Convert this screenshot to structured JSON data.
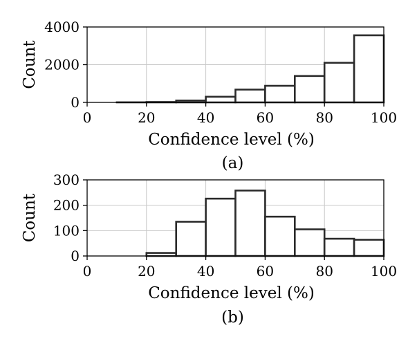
{
  "chart_data": [
    {
      "type": "bar",
      "caption": "(a)",
      "xlabel": "Confidence level (%)",
      "ylabel": "Count",
      "xlim": [
        0,
        100
      ],
      "ylim": [
        0,
        4000
      ],
      "xticks": [
        0,
        20,
        40,
        60,
        80,
        100
      ],
      "yticks": [
        0,
        2000,
        4000
      ],
      "grid": true,
      "bins": [
        [
          0,
          10
        ],
        [
          10,
          20
        ],
        [
          20,
          30
        ],
        [
          30,
          40
        ],
        [
          40,
          50
        ],
        [
          50,
          60
        ],
        [
          60,
          70
        ],
        [
          70,
          80
        ],
        [
          80,
          90
        ],
        [
          90,
          100
        ]
      ],
      "values": [
        0,
        5,
        20,
        100,
        300,
        680,
        880,
        1400,
        2100,
        3560
      ]
    },
    {
      "type": "bar",
      "caption": "(b)",
      "xlabel": "Confidence level (%)",
      "ylabel": "Count",
      "xlim": [
        0,
        100
      ],
      "ylim": [
        0,
        300
      ],
      "xticks": [
        0,
        20,
        40,
        60,
        80,
        100
      ],
      "yticks": [
        0,
        100,
        200,
        300
      ],
      "grid": true,
      "bins": [
        [
          0,
          10
        ],
        [
          10,
          20
        ],
        [
          20,
          30
        ],
        [
          30,
          40
        ],
        [
          40,
          50
        ],
        [
          50,
          60
        ],
        [
          60,
          70
        ],
        [
          70,
          80
        ],
        [
          80,
          90
        ],
        [
          90,
          100
        ]
      ],
      "values": [
        0,
        0,
        12,
        135,
        226,
        258,
        155,
        105,
        68,
        64
      ]
    }
  ]
}
